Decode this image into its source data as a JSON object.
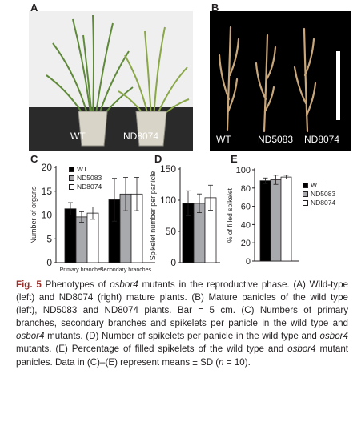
{
  "panels": {
    "a": {
      "letter": "A",
      "labels": [
        "WT",
        "ND8074"
      ]
    },
    "b": {
      "letter": "B",
      "labels": [
        "WT",
        "ND5083",
        "ND8074"
      ]
    },
    "c": {
      "letter": "C"
    },
    "d": {
      "letter": "D"
    },
    "e": {
      "letter": "E"
    }
  },
  "colors": {
    "WT": "#000000",
    "ND5083": "#a7a9ac",
    "ND8074": "#ffffff",
    "caption_label": "#9b2f2a"
  },
  "chart_data": [
    {
      "panel": "C",
      "type": "bar",
      "ylabel": "Number of organs",
      "xlabel": "",
      "ylim": [
        0,
        20
      ],
      "yticks": [
        0,
        5,
        10,
        15,
        20
      ],
      "categories": [
        "Primary branches",
        "Secondary branches"
      ],
      "series": [
        {
          "name": "WT",
          "color": "#000000",
          "values": [
            11.3,
            13.2
          ],
          "errors": [
            1.3,
            4.5
          ]
        },
        {
          "name": "ND5083",
          "color": "#a7a9ac",
          "values": [
            9.6,
            14.4
          ],
          "errors": [
            1.1,
            3.5
          ]
        },
        {
          "name": "ND8074",
          "color": "#ffffff",
          "values": [
            10.4,
            14.4
          ],
          "errors": [
            1.3,
            3.5
          ]
        }
      ],
      "legend": "top-right"
    },
    {
      "panel": "D",
      "type": "bar",
      "ylabel": "Spikelet number per panicle",
      "xlabel": "",
      "ylim": [
        0,
        150
      ],
      "yticks": [
        0,
        50,
        100,
        150
      ],
      "categories": [
        ""
      ],
      "series": [
        {
          "name": "WT",
          "color": "#000000",
          "values": [
            95
          ],
          "errors": [
            20
          ]
        },
        {
          "name": "ND5083",
          "color": "#a7a9ac",
          "values": [
            95
          ],
          "errors": [
            15
          ]
        },
        {
          "name": "ND8074",
          "color": "#ffffff",
          "values": [
            104
          ],
          "errors": [
            20
          ]
        }
      ]
    },
    {
      "panel": "E",
      "type": "bar",
      "ylabel": "% of filled spikelet",
      "xlabel": "",
      "ylim": [
        0,
        100
      ],
      "yticks": [
        0,
        20,
        40,
        60,
        80,
        100
      ],
      "categories": [
        ""
      ],
      "series": [
        {
          "name": "WT",
          "color": "#000000",
          "values": [
            88
          ],
          "errors": [
            3
          ]
        },
        {
          "name": "ND5083",
          "color": "#a7a9ac",
          "values": [
            89
          ],
          "errors": [
            5
          ]
        },
        {
          "name": "ND8074",
          "color": "#ffffff",
          "values": [
            92
          ],
          "errors": [
            2
          ]
        }
      ],
      "legend": "right"
    }
  ],
  "caption": {
    "label": "Fig. 5",
    "seg1": "Phenotypes of ",
    "gene1": "osbor4",
    "seg2": " mutants in the reproductive phase. (A) Wild-type (left) and ND8074 (right) mature plants. (B) Mature panicles of the wild type (left), ND5083 and ND8074 plants. Bar = 5 cm. (C) Numbers of primary branches, secondary branches and spikelets per panicle in the wild type and ",
    "gene2": "osbor4",
    "seg3": " mutants. (D) Number of spikelets per panicle in the wild type and ",
    "gene3": "osbor4",
    "seg4": " mutants. (E) Percentage of filled spikelets of the wild type and ",
    "gene4": "osbor4",
    "seg5": " mutant panicles. Data in (C)–(E) represent means ± SD (",
    "n_var": "n",
    "seg6": " = 10)."
  }
}
